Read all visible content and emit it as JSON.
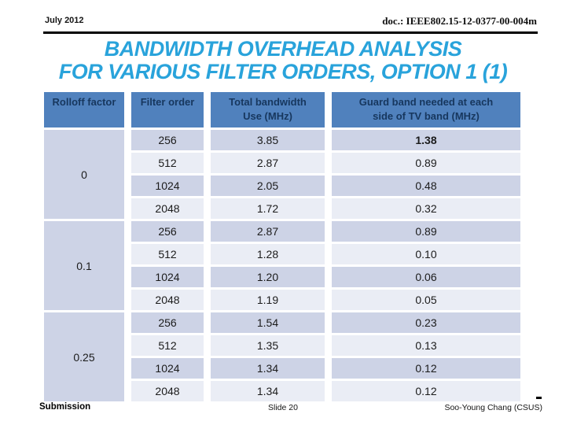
{
  "header": {
    "date": "July 2012",
    "doc_number": "doc.: IEEE802.15-12-0377-00-004m"
  },
  "title": {
    "line1": "BANDWIDTH OVERHEAD ANALYSIS",
    "line2": "FOR VARIOUS FILTER ORDERS, OPTION 1 (1)"
  },
  "table": {
    "headers": [
      {
        "l1": "Rolloff factor",
        "l2": ""
      },
      {
        "l1": "Filter order",
        "l2": ""
      },
      {
        "l1": "Total bandwidth",
        "l2": "Use (MHz)"
      },
      {
        "l1": "Guard band needed at each",
        "l2": "side of TV band (MHz)"
      }
    ],
    "groups": [
      {
        "rolloff": "0",
        "rows": [
          [
            "256",
            "3.85",
            "1.38"
          ],
          [
            "512",
            "2.87",
            "0.89"
          ],
          [
            "1024",
            "2.05",
            "0.48"
          ],
          [
            "2048",
            "1.72",
            "0.32"
          ]
        ]
      },
      {
        "rolloff": "0.1",
        "rows": [
          [
            "256",
            "2.87",
            "0.89"
          ],
          [
            "512",
            "1.28",
            "0.10"
          ],
          [
            "1024",
            "1.20",
            "0.06"
          ],
          [
            "2048",
            "1.19",
            "0.05"
          ]
        ]
      },
      {
        "rolloff": "0.25",
        "rows": [
          [
            "256",
            "1.54",
            "0.23"
          ],
          [
            "512",
            "1.35",
            "0.13"
          ],
          [
            "1024",
            "1.34",
            "0.12"
          ],
          [
            "2048",
            "1.34",
            "0.12"
          ]
        ]
      }
    ]
  },
  "footer": {
    "left": "Submission",
    "center": "Slide 20",
    "right": "Soo-Young Chang (CSUS)"
  },
  "colors": {
    "title_blue": "#29a3db",
    "header_bg": "#5081bd",
    "header_text": "#17375e",
    "row_dark": "#cdd3e6",
    "row_light": "#eaedf5",
    "guard_red": "#c23a3a"
  }
}
